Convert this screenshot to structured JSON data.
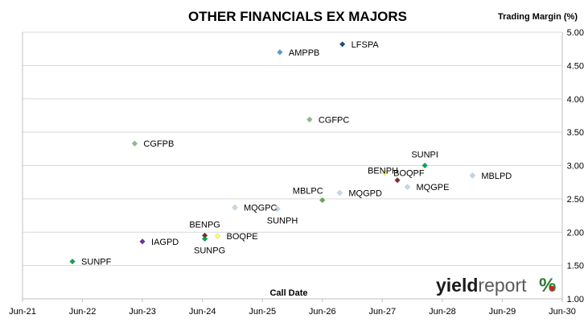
{
  "chart_data": {
    "type": "scatter",
    "title": "OTHER FINANCIALS EX MAJORS",
    "ylabel": "Trading Margin (%)",
    "xlabel": "Call Date",
    "xlim": [
      "2021-06-01",
      "2030-06-01"
    ],
    "x_ticks": [
      {
        "date": "2021-06-01",
        "label": "Jun-21"
      },
      {
        "date": "2022-06-01",
        "label": "Jun-22"
      },
      {
        "date": "2023-06-01",
        "label": "Jun-23"
      },
      {
        "date": "2024-06-01",
        "label": "Jun-24"
      },
      {
        "date": "2025-06-01",
        "label": "Jun-25"
      },
      {
        "date": "2026-06-01",
        "label": "Jun-26"
      },
      {
        "date": "2027-06-01",
        "label": "Jun-27"
      },
      {
        "date": "2028-06-01",
        "label": "Jun-28"
      },
      {
        "date": "2029-06-01",
        "label": "Jun-29"
      },
      {
        "date": "2030-06-01",
        "label": "Jun-30"
      }
    ],
    "ylim": [
      1.0,
      5.0
    ],
    "y_ticks": [
      "1.00",
      "1.50",
      "2.00",
      "2.50",
      "3.00",
      "3.50",
      "4.00",
      "4.50",
      "5.00"
    ],
    "y_axis_side": "right",
    "grid": "horizontal",
    "points": [
      {
        "label": "LFSPA",
        "date": "2026-10-01",
        "y": 4.82,
        "color": "#1f4e79",
        "label_pos": "right"
      },
      {
        "label": "AMPPB",
        "date": "2025-09-15",
        "y": 4.7,
        "color": "#5b9bd5",
        "label_pos": "right"
      },
      {
        "label": "CGFPC",
        "date": "2026-03-15",
        "y": 3.69,
        "color": "#8fbc8f",
        "label_pos": "right"
      },
      {
        "label": "CGFPB",
        "date": "2023-04-15",
        "y": 3.33,
        "color": "#8fbc8f",
        "label_pos": "right"
      },
      {
        "label": "SUNPI",
        "date": "2028-02-15",
        "y": 3.0,
        "color": "#00a651",
        "label_pos": "above"
      },
      {
        "label": "MBLPD",
        "date": "2028-12-01",
        "y": 2.85,
        "color": "#bdd7ee",
        "label_pos": "right"
      },
      {
        "label": "BOQPF",
        "date": "2027-06-15",
        "y": 2.89,
        "color": "#ffff66",
        "label_pos": "right"
      },
      {
        "label": "BENPH",
        "date": "2027-09-01",
        "y": 2.78,
        "color": "#7f2a2a",
        "label_pos": "upper-left"
      },
      {
        "label": "MQGPE",
        "date": "2027-11-01",
        "y": 2.68,
        "color": "#c6d9f1",
        "label_pos": "right"
      },
      {
        "label": "MQGPD",
        "date": "2026-09-15",
        "y": 2.59,
        "color": "#c6d9f1",
        "label_pos": "right"
      },
      {
        "label": "MBLPC",
        "date": "2026-06-01",
        "y": 2.48,
        "color": "#6aa84f",
        "label_pos": "upper-left"
      },
      {
        "label": "MQGPC",
        "date": "2024-12-15",
        "y": 2.37,
        "color": "#c6d9f1",
        "label_pos": "right"
      },
      {
        "label": "SUNPH",
        "date": "2025-09-01",
        "y": 2.35,
        "color": "#c6d9f1",
        "label_pos": "below"
      },
      {
        "label": "BENPG",
        "date": "2024-06-15",
        "y": 1.95,
        "color": "#7f2a2a",
        "label_pos": "above"
      },
      {
        "label": "BOQPE",
        "date": "2024-09-01",
        "y": 1.94,
        "color": "#ffff66",
        "label_pos": "right"
      },
      {
        "label": "SUNPG",
        "date": "2024-06-15",
        "y": 1.9,
        "color": "#00a651",
        "label_pos": "below"
      },
      {
        "label": "IAGPD",
        "date": "2023-06-01",
        "y": 1.86,
        "color": "#7030a0",
        "label_pos": "right"
      },
      {
        "label": "SUNPF",
        "date": "2022-04-01",
        "y": 1.56,
        "color": "#00a651",
        "label_pos": "right"
      }
    ]
  },
  "logo": {
    "word_a": "yield",
    "word_b": "report",
    "symbol": "%"
  }
}
